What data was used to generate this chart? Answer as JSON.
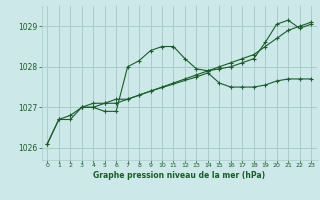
{
  "bg_color": "#cce8e8",
  "grid_color": "#aacccc",
  "line_color": "#1a5c2a",
  "title": "Graphe pression niveau de la mer (hPa)",
  "xlim": [
    -0.5,
    23.5
  ],
  "ylim": [
    1025.7,
    1029.5
  ],
  "yticks": [
    1026,
    1027,
    1028,
    1029
  ],
  "xticks": [
    0,
    1,
    2,
    3,
    4,
    5,
    6,
    7,
    8,
    9,
    10,
    11,
    12,
    13,
    14,
    15,
    16,
    17,
    18,
    19,
    20,
    21,
    22,
    23
  ],
  "series": [
    {
      "x": [
        0,
        1,
        2,
        3,
        4,
        5,
        6,
        7,
        8,
        9,
        10,
        11,
        12,
        13,
        14
      ],
      "y": [
        1026.1,
        1026.7,
        1026.7,
        1027.0,
        1027.0,
        1026.9,
        1026.9,
        1028.0,
        1028.15,
        1028.4,
        1028.5,
        1028.5,
        1028.2,
        1027.95,
        1027.9
      ]
    },
    {
      "x": [
        3,
        4,
        5,
        6,
        7,
        8,
        9,
        13,
        14,
        15,
        16,
        17,
        18,
        19,
        20,
        21,
        22,
        23
      ],
      "y": [
        1027.0,
        1027.0,
        1027.1,
        1027.1,
        1027.2,
        1027.3,
        1027.4,
        1027.75,
        1027.85,
        1027.6,
        1027.5,
        1027.5,
        1027.5,
        1027.55,
        1027.65,
        1027.7,
        1027.7,
        1027.7
      ]
    },
    {
      "x": [
        14,
        15,
        16,
        17,
        18,
        19,
        20,
        21,
        22,
        23
      ],
      "y": [
        1027.9,
        1027.95,
        1028.0,
        1028.1,
        1028.2,
        1028.6,
        1029.05,
        1029.15,
        1028.95,
        1029.05
      ]
    },
    {
      "x": [
        0,
        1,
        2,
        3,
        4,
        5,
        6,
        7,
        8,
        9,
        10,
        11,
        12,
        13,
        14,
        15,
        16,
        17,
        18,
        19,
        20,
        21,
        22,
        23
      ],
      "y": [
        1026.1,
        1026.7,
        1026.8,
        1027.0,
        1027.1,
        1027.1,
        1027.2,
        1027.2,
        1027.3,
        1027.4,
        1027.5,
        1027.6,
        1027.7,
        1027.8,
        1027.9,
        1028.0,
        1028.1,
        1028.2,
        1028.3,
        1028.5,
        1028.7,
        1028.9,
        1029.0,
        1029.1
      ]
    }
  ]
}
